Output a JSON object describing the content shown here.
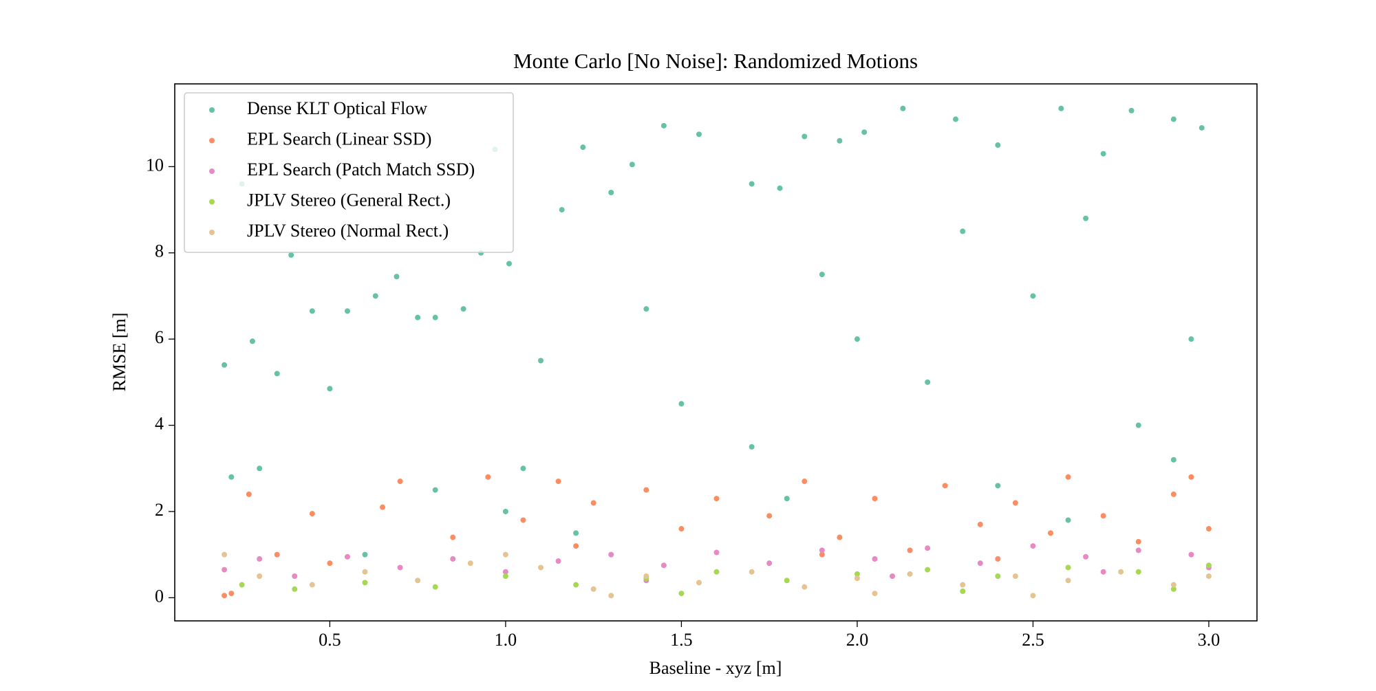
{
  "chart_data": {
    "type": "scatter",
    "title": "Monte Carlo [No Noise]: Randomized Motions",
    "x_label": "Baseline - xyz [m]",
    "y_label": "RMSE [m]",
    "xlim": [
      0.059,
      3.137
    ],
    "ylim": [
      -0.537,
      11.92
    ],
    "xticks": [
      0.5,
      {
        "value": 1,
        "label": "1.0"
      },
      1.5,
      {
        "value": 2,
        "label": "2.0"
      },
      2.5,
      {
        "value": 3,
        "label": "3.0"
      }
    ],
    "yticks": [
      0,
      2,
      4,
      6,
      8,
      10
    ],
    "legend": "upper left",
    "series": [
      {
        "name": "Dense KLT Optical Flow",
        "color": "#66c2a5",
        "x": [
          0.2,
          0.22,
          0.25,
          0.28,
          0.3,
          0.35,
          0.39,
          0.45,
          0.5,
          0.55,
          0.63,
          0.69,
          0.75,
          0.8,
          0.88,
          0.93,
          0.97,
          1.01,
          1.05,
          1.16,
          1.22,
          1.3,
          1.36,
          1.45,
          1.55,
          1.7,
          1.78,
          1.85,
          1.95,
          2.02,
          2.13,
          2.28,
          2.4,
          2.58,
          2.7,
          2.78,
          2.9,
          2.98,
          1.5,
          1.7,
          2.0,
          2.2,
          2.5,
          2.8,
          2.95,
          1.2,
          1.8,
          2.4,
          2.6,
          1.0,
          0.6,
          2.9,
          2.3,
          1.9,
          2.65,
          1.4,
          1.1,
          0.8
        ],
        "values": [
          5.4,
          2.8,
          9.6,
          5.95,
          3.0,
          5.2,
          7.95,
          6.65,
          4.85,
          6.65,
          7.0,
          7.45,
          6.5,
          6.5,
          6.7,
          8.0,
          10.4,
          7.75,
          3.0,
          9.0,
          10.45,
          9.4,
          10.05,
          10.95,
          10.75,
          9.6,
          9.5,
          10.7,
          10.6,
          10.8,
          11.35,
          11.1,
          10.5,
          11.35,
          10.3,
          11.3,
          11.1,
          10.9,
          4.5,
          3.5,
          6.0,
          5.0,
          7.0,
          4.0,
          6.0,
          1.5,
          2.3,
          2.6,
          1.8,
          2.0,
          1.0,
          3.2,
          8.5,
          7.5,
          8.8,
          6.7,
          5.5,
          2.5
        ]
      },
      {
        "name": "EPL Search (Linear SSD)",
        "color": "#fc8d62",
        "x": [
          0.2,
          0.22,
          0.27,
          0.35,
          0.45,
          0.5,
          0.65,
          0.7,
          0.85,
          0.95,
          1.05,
          1.15,
          1.25,
          1.4,
          1.5,
          1.6,
          1.75,
          1.85,
          1.95,
          2.05,
          2.15,
          2.25,
          2.35,
          2.45,
          2.55,
          2.6,
          2.7,
          2.8,
          2.9,
          3.0,
          2.95,
          1.2,
          1.9,
          2.4
        ],
        "values": [
          0.05,
          0.1,
          2.4,
          1.0,
          1.95,
          0.8,
          2.1,
          2.7,
          1.4,
          2.8,
          1.8,
          2.7,
          2.2,
          2.5,
          1.6,
          2.3,
          1.9,
          2.7,
          1.4,
          2.3,
          1.1,
          2.6,
          1.7,
          2.2,
          1.5,
          2.8,
          1.9,
          1.3,
          2.4,
          1.6,
          2.8,
          1.2,
          1.0,
          0.9
        ]
      },
      {
        "name": "EPL Search (Patch Match SSD)",
        "color": "#e78ac3",
        "x": [
          0.2,
          0.3,
          0.4,
          0.55,
          0.7,
          0.85,
          1.0,
          1.15,
          1.3,
          1.45,
          1.6,
          1.75,
          1.9,
          2.05,
          2.2,
          2.35,
          2.5,
          2.65,
          2.8,
          2.95,
          3.0,
          2.1,
          1.4,
          2.7
        ],
        "values": [
          0.65,
          0.9,
          0.5,
          0.95,
          0.7,
          0.9,
          0.6,
          0.85,
          1.0,
          0.75,
          1.05,
          0.8,
          1.1,
          0.9,
          1.15,
          0.8,
          1.2,
          0.95,
          1.1,
          1.0,
          0.7,
          0.5,
          0.4,
          0.6
        ]
      },
      {
        "name": "JPLV Stereo (General Rect.)",
        "color": "#a6d854",
        "x": [
          0.25,
          0.4,
          0.6,
          0.8,
          1.0,
          1.2,
          1.4,
          1.6,
          1.8,
          2.0,
          2.2,
          2.4,
          2.6,
          2.8,
          3.0,
          2.9,
          1.5,
          2.3
        ],
        "values": [
          0.3,
          0.2,
          0.35,
          0.25,
          0.5,
          0.3,
          0.45,
          0.6,
          0.4,
          0.55,
          0.65,
          0.5,
          0.7,
          0.6,
          0.75,
          0.2,
          0.1,
          0.15
        ]
      },
      {
        "name": "JPLV Stereo (Normal Rect.)",
        "color": "#e5c494",
        "x": [
          0.2,
          0.3,
          0.45,
          0.6,
          0.75,
          0.9,
          1.0,
          1.1,
          1.25,
          1.4,
          1.55,
          1.7,
          1.85,
          2.0,
          2.15,
          2.3,
          2.45,
          2.6,
          2.75,
          2.9,
          3.0,
          2.05,
          2.5,
          1.3
        ],
        "values": [
          1.0,
          0.5,
          0.3,
          0.6,
          0.4,
          0.8,
          1.0,
          0.7,
          0.2,
          0.5,
          0.35,
          0.6,
          0.25,
          0.45,
          0.55,
          0.3,
          0.5,
          0.4,
          0.6,
          0.3,
          0.5,
          0.1,
          0.05,
          0.05
        ]
      }
    ]
  }
}
